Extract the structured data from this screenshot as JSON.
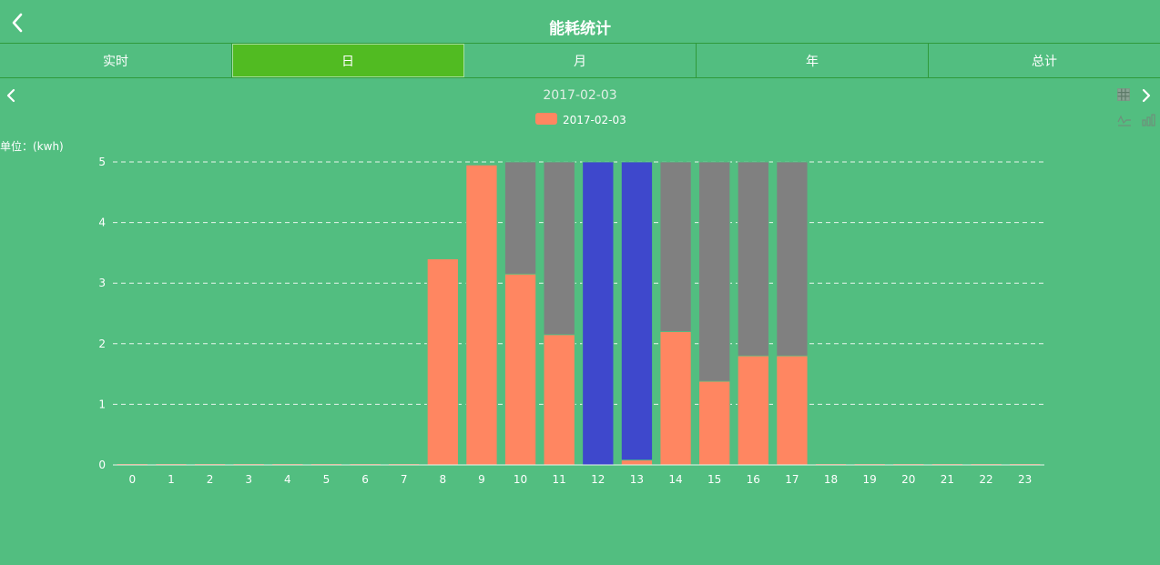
{
  "header": {
    "title": "能耗统计"
  },
  "tabs": [
    {
      "label": "实时",
      "active": false
    },
    {
      "label": "日",
      "active": true
    },
    {
      "label": "月",
      "active": false
    },
    {
      "label": "年",
      "active": false
    },
    {
      "label": "总计",
      "active": false
    }
  ],
  "nav": {
    "date": "2017-02-03"
  },
  "unit_label": "单位：(kwh)",
  "icons": {
    "back": "chevron-left-icon",
    "prev": "chevron-left-icon",
    "next": "chevron-right-icon",
    "table_view": "table-icon",
    "line_view": "line-chart-icon",
    "bar_view": "bar-chart-icon"
  },
  "colors": {
    "background": "#52be80",
    "active_tab": "#51bb22",
    "series_main": "#ff8661",
    "series_gray": "#808080",
    "series_blue": "#3e48cc",
    "grid": "#e8f5ec"
  },
  "chart_data": {
    "type": "bar",
    "stacked": true,
    "legend": [
      "2017-02-03"
    ],
    "legend_position": "top-center",
    "grid": true,
    "categories": [
      "0",
      "1",
      "2",
      "3",
      "4",
      "5",
      "6",
      "7",
      "8",
      "9",
      "10",
      "11",
      "12",
      "13",
      "14",
      "15",
      "16",
      "17",
      "18",
      "19",
      "20",
      "21",
      "22",
      "23"
    ],
    "ylim": [
      0,
      5
    ],
    "yticks": [
      0,
      1,
      2,
      3,
      4,
      5
    ],
    "series": [
      {
        "name": "2017-02-03",
        "color": "#ff8661",
        "values": [
          0.02,
          0.02,
          0.02,
          0.02,
          0.02,
          0.02,
          0.02,
          0.02,
          3.4,
          4.95,
          3.15,
          2.15,
          0,
          0.08,
          2.2,
          1.38,
          1.8,
          1.8,
          0.02,
          0.02,
          0.02,
          0.02,
          0.02,
          0.02
        ]
      },
      {
        "color": "#808080",
        "values": [
          0,
          0,
          0,
          0,
          0,
          0,
          0,
          0,
          0,
          0,
          1.85,
          2.85,
          0,
          0,
          2.8,
          3.62,
          3.2,
          3.2,
          0,
          0,
          0,
          0,
          0,
          0
        ]
      },
      {
        "color": "#3e48cc",
        "values": [
          0,
          0,
          0,
          0,
          0,
          0,
          0,
          0,
          0,
          0,
          0,
          0,
          5,
          4.92,
          0,
          0,
          0,
          0,
          0,
          0,
          0,
          0,
          0,
          0
        ]
      }
    ]
  }
}
